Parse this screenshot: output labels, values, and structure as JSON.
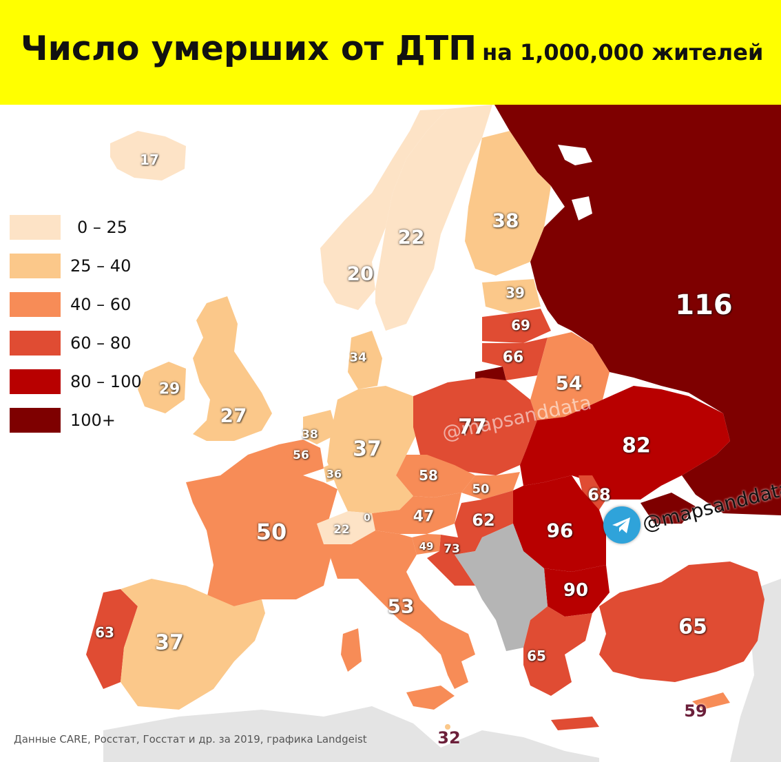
{
  "title": {
    "main": "Число умерших от ДТП",
    "sub": "на 1,000,000 жителей"
  },
  "legend": [
    {
      "label": "0 – 25",
      "color": "#fde3c6"
    },
    {
      "label": "25 – 40",
      "color": "#fbc88a"
    },
    {
      "label": "40 – 60",
      "color": "#f78c57"
    },
    {
      "label": "60 – 80",
      "color": "#e04c33"
    },
    {
      "label": "80 – 100",
      "color": "#b80000"
    },
    {
      "label": "100+",
      "color": "#7e0000"
    }
  ],
  "values": {
    "iceland": "17",
    "norway": "20",
    "sweden": "22",
    "finland": "38",
    "estonia": "39",
    "latvia": "69",
    "lithuania": "66",
    "belarus": "54",
    "russia": "116",
    "ireland": "29",
    "uk": "27",
    "denmark": "34",
    "netherlands": "38",
    "belgium": "56",
    "luxembourg": "36",
    "germany": "37",
    "poland": "77",
    "czechia": "58",
    "slovakia": "50",
    "ukraine": "82",
    "moldova": "68",
    "france": "50",
    "switzerland": "22",
    "liechtenstein": "0",
    "austria": "47",
    "hungary": "62",
    "slovenia": "49",
    "croatia": "73",
    "romania": "96",
    "bulgaria": "90",
    "italy": "53",
    "portugal": "63",
    "spain": "37",
    "greece": "65",
    "turkey": "65",
    "cyprus": "59",
    "malta": "32"
  },
  "watermark": "@mapsanddata",
  "source": "Данные CARE, Росстат, Госстат и др. за 2019, графика Landgeist",
  "colors": {
    "header": "#ffff00",
    "no_data": "#b5b5b5",
    "background_land": "#e4e4e4",
    "telegram": "#2fa3da"
  },
  "icons": [
    "telegram-icon"
  ]
}
